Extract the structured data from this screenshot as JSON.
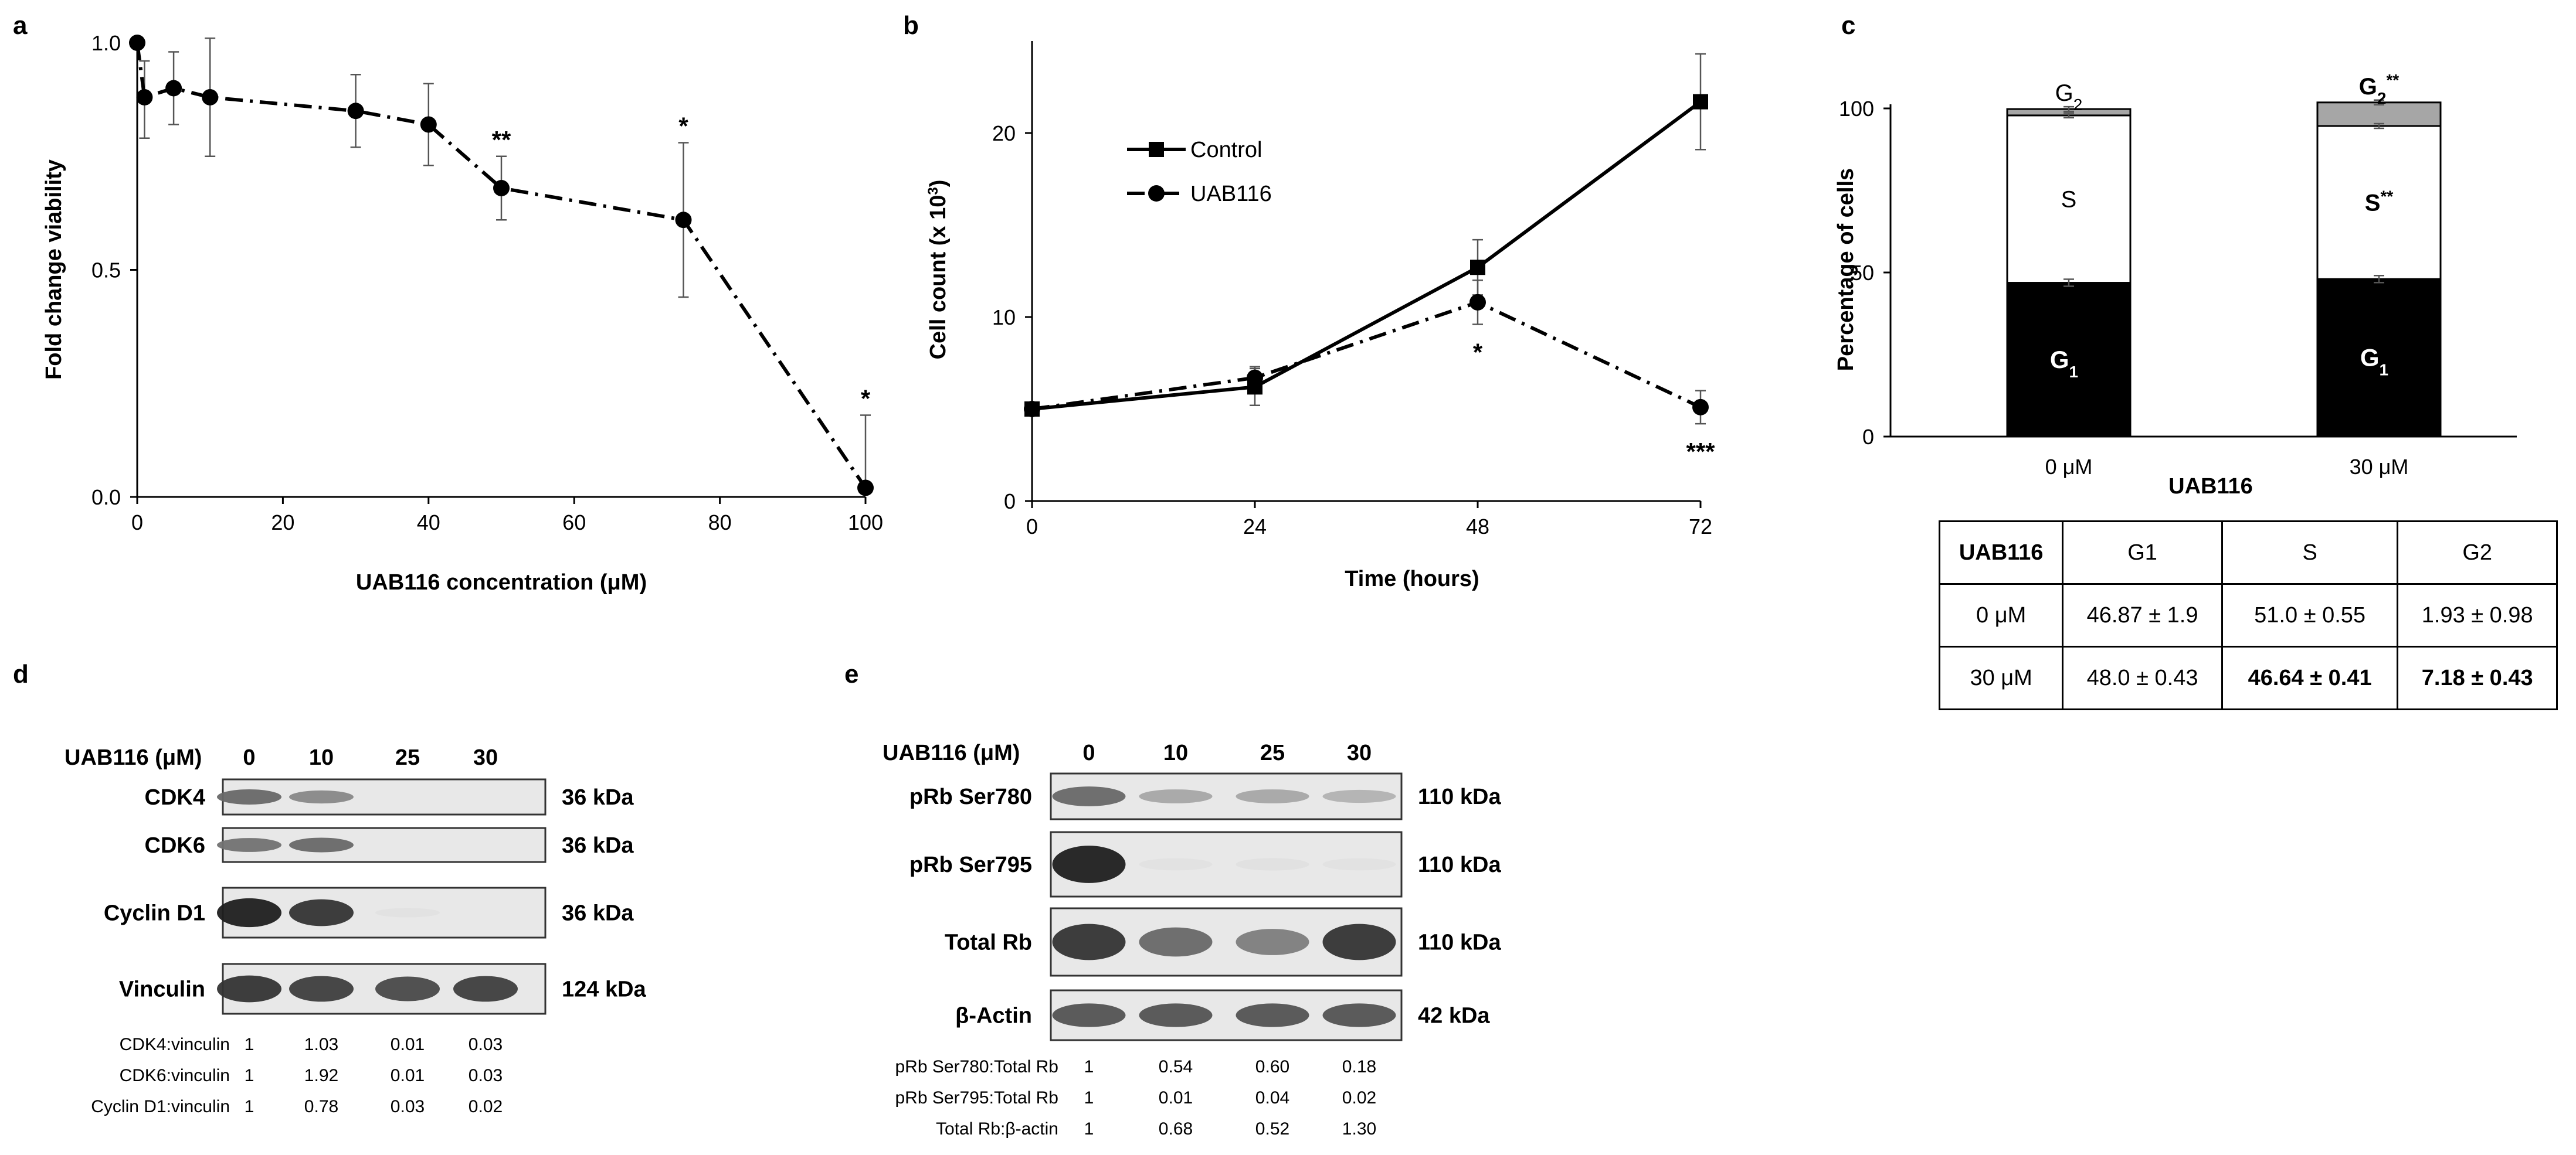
{
  "panels": {
    "a": "a",
    "b": "b",
    "c": "c",
    "d": "d",
    "e": "e"
  },
  "chart_data": [
    {
      "id": "a",
      "type": "line",
      "title": "",
      "xlabel": "UAB116 concentration (μM)",
      "ylabel": "Fold change viability",
      "xlim": [
        0,
        100
      ],
      "ylim": [
        0,
        1.0
      ],
      "x_ticks": [
        "0",
        "20",
        "40",
        "60",
        "80",
        "100"
      ],
      "y_ticks": [
        "0.0",
        "0.5",
        "1.0"
      ],
      "x": [
        0,
        1,
        5,
        10,
        30,
        40,
        50,
        75,
        100
      ],
      "y": [
        1.0,
        0.88,
        0.9,
        0.88,
        0.85,
        0.82,
        0.68,
        0.61,
        0.02
      ],
      "err_up": [
        0,
        0.08,
        0.08,
        0.13,
        0.08,
        0.09,
        0.07,
        0.17,
        0.16
      ],
      "err_down": [
        0,
        0.09,
        0.08,
        0.13,
        0.08,
        0.09,
        0.07,
        0.17,
        0
      ],
      "annotations": [
        {
          "x": 50,
          "text": "**"
        },
        {
          "x": 75,
          "text": "*"
        },
        {
          "x": 100,
          "text": "*"
        }
      ]
    },
    {
      "id": "b",
      "type": "line",
      "xlabel": "Time (hours)",
      "ylabel": "Cell count (x 10",
      "ylabel_sup": "3",
      "ylabel_end": ")",
      "x_ticks": [
        "0",
        "24",
        "48",
        "72"
      ],
      "y_ticks": [
        "0",
        "10",
        "20"
      ],
      "xlim": [
        0,
        72
      ],
      "ylim": [
        0,
        25
      ],
      "series": [
        {
          "name": "Control",
          "x": [
            0,
            24,
            48,
            72
          ],
          "values": [
            5.0,
            6.2,
            12.7,
            21.7
          ],
          "err": [
            0.3,
            1.0,
            1.5,
            2.6
          ]
        },
        {
          "name": "UAB116",
          "x": [
            0,
            24,
            48,
            72
          ],
          "values": [
            5.0,
            6.7,
            10.8,
            5.1
          ],
          "err": [
            0.3,
            0.6,
            1.2,
            0.9
          ]
        }
      ],
      "legend": [
        "Control",
        "UAB116"
      ],
      "annotations": [
        {
          "x": 48,
          "text": "*"
        },
        {
          "x": 72,
          "text": "***"
        }
      ]
    },
    {
      "id": "c",
      "type": "bar",
      "stacked": true,
      "xlabel": "UAB116",
      "ylabel": "Percentage of cells",
      "categories": [
        "0 μM",
        "30 μM"
      ],
      "y_ticks": [
        "0",
        "50",
        "100"
      ],
      "ylim": [
        0,
        100
      ],
      "series": [
        {
          "name": "G1",
          "values": [
            46.87,
            48.0
          ],
          "color": "#000000"
        },
        {
          "name": "S",
          "values": [
            51.0,
            46.64
          ],
          "color": "#ffffff"
        },
        {
          "name": "G2",
          "values": [
            1.93,
            7.18
          ],
          "color": "#a6a6a6"
        }
      ],
      "segment_labels": {
        "g1": "G",
        "g1_sub": "1",
        "s": "S",
        "s_sig": "**",
        "g2": "G",
        "g2_sub": "2",
        "g2_sig": "**"
      }
    }
  ],
  "table_c": {
    "header": [
      "UAB116",
      "G1",
      "S",
      "G2"
    ],
    "rows": [
      [
        "0 μM",
        "46.87 ± 1.9",
        "51.0 ± 0.55",
        "1.93 ± 0.98"
      ],
      [
        "30 μM",
        "48.0 ± 0.43",
        "46.64 ± 0.41",
        "7.18 ± 0.43"
      ]
    ]
  },
  "blot_d": {
    "dose_label": "UAB116 (μM)",
    "doses": [
      "0",
      "10",
      "25",
      "30"
    ],
    "proteins": [
      {
        "name": "CDK4",
        "kda": "36 kDa",
        "intensity": [
          0.6,
          0.45,
          0,
          0
        ]
      },
      {
        "name": "CDK6",
        "kda": "36 kDa",
        "intensity": [
          0.55,
          0.6,
          0,
          0
        ]
      },
      {
        "name": "Cyclin D1",
        "kda": "36 kDa",
        "intensity": [
          0.95,
          0.85,
          0.02,
          0
        ]
      },
      {
        "name": "Vinculin",
        "kda": "124 kDa",
        "intensity": [
          0.85,
          0.8,
          0.75,
          0.8
        ]
      }
    ],
    "quant": [
      {
        "label": "CDK4:vinculin",
        "values": [
          "1",
          "1.03",
          "0.01",
          "0.03"
        ]
      },
      {
        "label": "CDK6:vinculin",
        "values": [
          "1",
          "1.92",
          "0.01",
          "0.03"
        ]
      },
      {
        "label": "Cyclin D1:vinculin",
        "values": [
          "1",
          "0.78",
          "0.03",
          "0.02"
        ]
      }
    ]
  },
  "blot_e": {
    "dose_label": "UAB116 (μM)",
    "doses": [
      "0",
      "10",
      "25",
      "30"
    ],
    "proteins": [
      {
        "name": "pRb Ser780",
        "kda": "110 kDa",
        "intensity": [
          0.6,
          0.3,
          0.3,
          0.25
        ]
      },
      {
        "name": "pRb Ser795",
        "kda": "110 kDa",
        "intensity": [
          0.95,
          0.02,
          0.03,
          0.02
        ]
      },
      {
        "name": "Total Rb",
        "kda": "110 kDa",
        "intensity": [
          0.85,
          0.6,
          0.5,
          0.85
        ]
      },
      {
        "name": "β-Actin",
        "kda": "42 kDa",
        "intensity": [
          0.7,
          0.7,
          0.7,
          0.7
        ]
      }
    ],
    "quant": [
      {
        "label": "pRb Ser780:Total Rb",
        "values": [
          "1",
          "0.54",
          "0.60",
          "0.18"
        ]
      },
      {
        "label": "pRb Ser795:Total Rb",
        "values": [
          "1",
          "0.01",
          "0.04",
          "0.02"
        ]
      },
      {
        "label": "Total Rb:β-actin",
        "values": [
          "1",
          "0.68",
          "0.52",
          "1.30"
        ]
      }
    ]
  }
}
